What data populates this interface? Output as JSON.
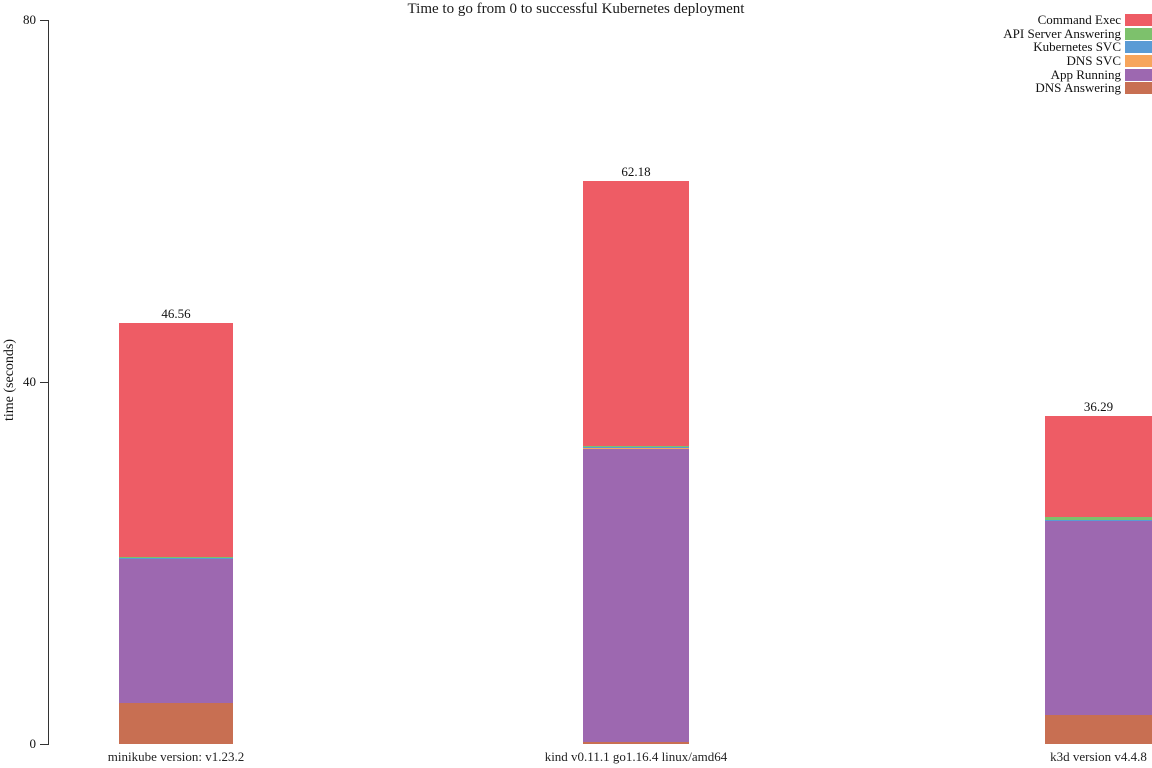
{
  "chart_data": {
    "type": "bar",
    "stacked": true,
    "title": "Time to go from 0 to successful Kubernetes deployment",
    "xlabel": "",
    "ylabel": "time (seconds)",
    "ylim": [
      0,
      80
    ],
    "yticks": [
      0,
      40,
      80
    ],
    "grid": false,
    "legend_position": "top-right",
    "categories": [
      "minikube version: v1.23.2",
      "kind v0.11.1 go1.16.4 linux/amd64",
      "k3d version v4.4.8"
    ],
    "totals": [
      46.56,
      62.18,
      36.29
    ],
    "total_labels": [
      "46.56",
      "62.18",
      "36.29"
    ],
    "series": [
      {
        "name": "DNS Answering",
        "color": "#c86f52",
        "values": [
          4.53,
          0.25,
          3.2
        ]
      },
      {
        "name": "App Running",
        "color": "#9d68b0",
        "values": [
          15.9,
          32.4,
          21.4
        ]
      },
      {
        "name": "DNS SVC",
        "color": "#f7a55c",
        "values": [
          0.06,
          0.05,
          0.06
        ]
      },
      {
        "name": "Kubernetes SVC",
        "color": "#5a9bd5",
        "values": [
          0.1,
          0.1,
          0.1
        ]
      },
      {
        "name": "API Server Answering",
        "color": "#7dc16c",
        "values": [
          0.12,
          0.15,
          0.33
        ]
      },
      {
        "name": "Command Exec",
        "color": "#ee5c65",
        "values": [
          25.85,
          29.23,
          11.2
        ]
      }
    ],
    "legend": [
      "Command Exec",
      "API Server Answering",
      "Kubernetes SVC",
      "DNS SVC",
      "App Running",
      "DNS Answering"
    ]
  }
}
